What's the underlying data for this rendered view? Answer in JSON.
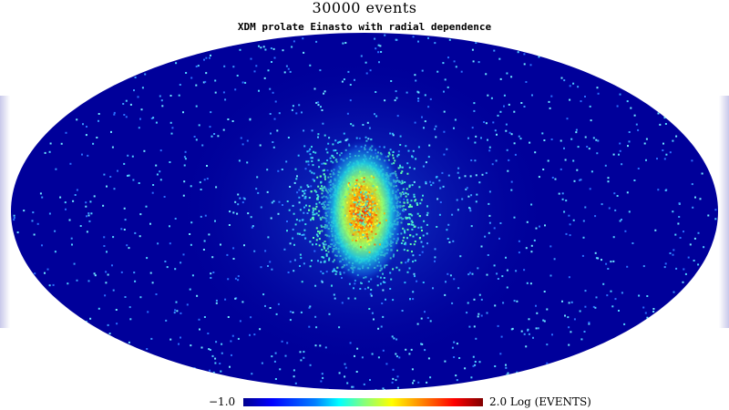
{
  "title": "30000 events",
  "subtitle": "XDM prolate Einasto with radial dependence",
  "colorbar": {
    "min_label": "−1.0",
    "max_label": "2.0 Log (EVENTS)",
    "min": -1.0,
    "max": 2.0,
    "colormap": [
      "#00008f",
      "#0000ff",
      "#0080ff",
      "#00ffff",
      "#80ff80",
      "#ffff00",
      "#ff8000",
      "#ff0000",
      "#800000"
    ]
  },
  "map": {
    "projection": "mollweide",
    "events": 30000,
    "background_color": "#00009a",
    "hotspot_color": "#e00000"
  }
}
